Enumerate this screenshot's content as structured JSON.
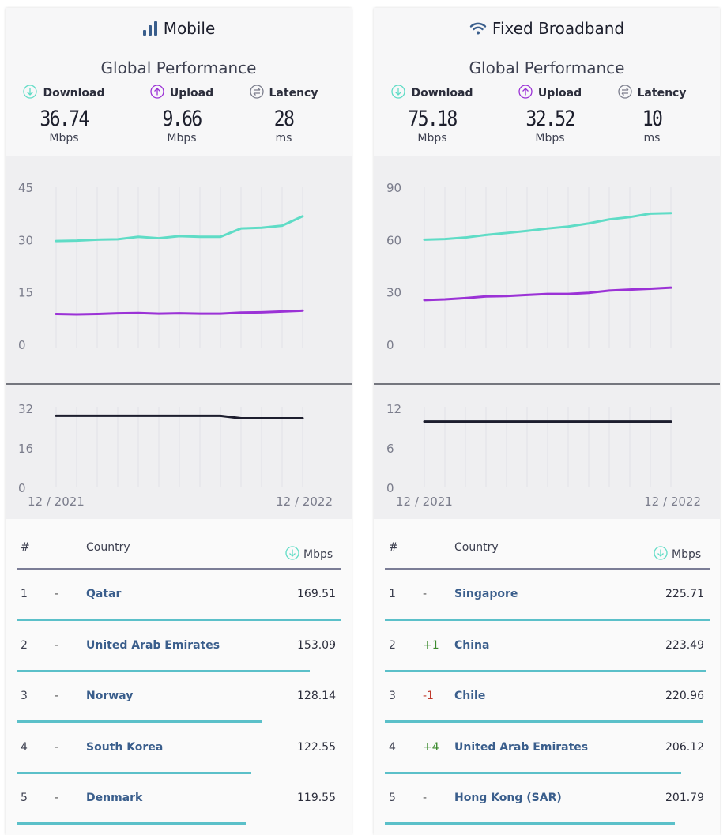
{
  "panels": [
    {
      "title": "Mobile",
      "subtitle": "Global Performance",
      "metrics": {
        "download": {
          "label": "Download",
          "value": "36.74",
          "unit": "Mbps"
        },
        "upload": {
          "label": "Upload",
          "value": "9.66",
          "unit": "Mbps"
        },
        "latency": {
          "label": "Latency",
          "value": "28",
          "unit": "ms"
        }
      },
      "speed_axis": [
        "45",
        "30",
        "15",
        "0"
      ],
      "latency_axis": [
        "32",
        "16",
        "0"
      ],
      "date_start": "12 / 2021",
      "date_end": "12 / 2022",
      "table": {
        "col_rank": "#",
        "col_country": "Country",
        "col_value": "Mbps",
        "rows": [
          {
            "rank": "1",
            "change": "-",
            "country": "Qatar",
            "value": "169.51",
            "fill": 1.0
          },
          {
            "rank": "2",
            "change": "-",
            "country": "United Arab Emirates",
            "value": "153.09",
            "fill": 0.903
          },
          {
            "rank": "3",
            "change": "-",
            "country": "Norway",
            "value": "128.14",
            "fill": 0.756
          },
          {
            "rank": "4",
            "change": "-",
            "country": "South Korea",
            "value": "122.55",
            "fill": 0.723
          },
          {
            "rank": "5",
            "change": "-",
            "country": "Denmark",
            "value": "119.55",
            "fill": 0.705
          }
        ]
      }
    },
    {
      "title": "Fixed Broadband",
      "subtitle": "Global Performance",
      "metrics": {
        "download": {
          "label": "Download",
          "value": "75.18",
          "unit": "Mbps"
        },
        "upload": {
          "label": "Upload",
          "value": "32.52",
          "unit": "Mbps"
        },
        "latency": {
          "label": "Latency",
          "value": "10",
          "unit": "ms"
        }
      },
      "speed_axis": [
        "90",
        "60",
        "30",
        "0"
      ],
      "latency_axis": [
        "12",
        "6",
        "0"
      ],
      "date_start": "12 / 2021",
      "date_end": "12 / 2022",
      "table": {
        "col_rank": "#",
        "col_country": "Country",
        "col_value": "Mbps",
        "rows": [
          {
            "rank": "1",
            "change": "-",
            "country": "Singapore",
            "value": "225.71",
            "fill": 1.0
          },
          {
            "rank": "2",
            "change": "+1",
            "country": "China",
            "value": "223.49",
            "fill": 0.99
          },
          {
            "rank": "3",
            "change": "-1",
            "country": "Chile",
            "value": "220.96",
            "fill": 0.979
          },
          {
            "rank": "4",
            "change": "+4",
            "country": "United Arab Emirates",
            "value": "206.12",
            "fill": 0.913
          },
          {
            "rank": "5",
            "change": "-",
            "country": "Hong Kong (SAR)",
            "value": "201.79",
            "fill": 0.894
          }
        ]
      }
    }
  ],
  "chart_data": [
    {
      "type": "line",
      "title": "Mobile",
      "x": [
        "12/2021",
        "01/2022",
        "02/2022",
        "03/2022",
        "04/2022",
        "05/2022",
        "06/2022",
        "07/2022",
        "08/2022",
        "09/2022",
        "10/2022",
        "11/2022",
        "12/2022"
      ],
      "ylim": [
        0,
        45
      ],
      "series": [
        {
          "name": "Download",
          "color": "#5fdcc6",
          "values": [
            29.6,
            29.7,
            30.0,
            30.1,
            30.8,
            30.4,
            31.0,
            30.8,
            30.8,
            33.2,
            33.4,
            34.0,
            36.7
          ]
        },
        {
          "name": "Upload",
          "color": "#9b32d6",
          "values": [
            8.7,
            8.6,
            8.7,
            8.9,
            9.0,
            8.8,
            8.9,
            8.8,
            8.8,
            9.1,
            9.2,
            9.4,
            9.66
          ]
        }
      ],
      "latency": {
        "name": "Latency",
        "color": "#1d1e2e",
        "ylim": [
          0,
          32
        ],
        "values": [
          29,
          29,
          29,
          29,
          29,
          29,
          29,
          29,
          29,
          28,
          28,
          28,
          28
        ]
      }
    },
    {
      "type": "line",
      "title": "Fixed Broadband",
      "x": [
        "12/2021",
        "01/2022",
        "02/2022",
        "03/2022",
        "04/2022",
        "05/2022",
        "06/2022",
        "07/2022",
        "08/2022",
        "09/2022",
        "10/2022",
        "11/2022",
        "12/2022"
      ],
      "ylim": [
        0,
        90
      ],
      "series": [
        {
          "name": "Download",
          "color": "#5fdcc6",
          "values": [
            60.0,
            60.3,
            61.2,
            62.7,
            63.8,
            65.0,
            66.4,
            67.5,
            69.3,
            71.6,
            72.9,
            74.9,
            75.2
          ]
        },
        {
          "name": "Upload",
          "color": "#9b32d6",
          "values": [
            25.4,
            25.8,
            26.5,
            27.5,
            27.7,
            28.3,
            28.9,
            28.9,
            29.5,
            30.8,
            31.4,
            31.9,
            32.5
          ]
        }
      ],
      "latency": {
        "name": "Latency",
        "color": "#1d1e2e",
        "ylim": [
          0,
          12
        ],
        "values": [
          10,
          10,
          10,
          10,
          10,
          10,
          10,
          10,
          10,
          10,
          10,
          10,
          10
        ]
      }
    }
  ]
}
